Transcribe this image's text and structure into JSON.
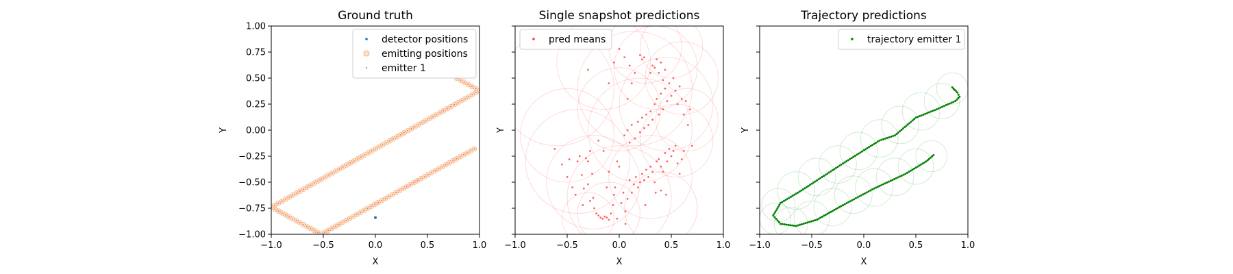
{
  "chart_data": [
    {
      "type": "scatter",
      "title": "Ground truth",
      "xlabel": "X",
      "ylabel": "Y",
      "xlim": [
        -1.0,
        1.0
      ],
      "ylim": [
        -1.0,
        1.0
      ],
      "xticks": [
        "−1.0",
        "−0.5",
        "0.0",
        "0.5",
        "1.0"
      ],
      "yticks": [
        "−1.00",
        "−0.75",
        "−0.50",
        "−0.25",
        "0.00",
        "0.25",
        "0.50",
        "0.75",
        "1.00"
      ],
      "legend_position": "top-right",
      "legend": [
        "detector positions",
        "emitting positions",
        "emitter 1"
      ],
      "series": [
        {
          "name": "detector positions",
          "color": "#1f77b4",
          "points": [
            [
              0.0,
              -0.84
            ]
          ]
        },
        {
          "name": "emitting positions",
          "color": "#ff7f0e",
          "path": [
            [
              0.78,
              0.5
            ],
            [
              1.0,
              0.38
            ],
            [
              -1.0,
              -0.74
            ],
            [
              -0.52,
              -1.0
            ],
            [
              0.95,
              -0.18
            ]
          ]
        },
        {
          "name": "emitter 1",
          "color": "#d62728",
          "path": [
            [
              0.78,
              0.5
            ],
            [
              1.0,
              0.38
            ],
            [
              -1.0,
              -0.74
            ],
            [
              -0.52,
              -1.0
            ],
            [
              0.95,
              -0.18
            ]
          ]
        }
      ]
    },
    {
      "type": "scatter",
      "title": "Single snapshot predictions",
      "xlabel": "X",
      "ylabel": "Y",
      "xlim": [
        -1.0,
        1.0
      ],
      "ylim": [
        -1.0,
        1.0
      ],
      "xticks": [
        "−1.0",
        "−0.5",
        "0.0",
        "0.5",
        "1.0"
      ],
      "legend_position": "top-left",
      "legend": [
        "pred means"
      ],
      "series": [
        {
          "name": "pred means",
          "color": "#ff3b3b",
          "points": [
            [
              -0.62,
              -0.18
            ],
            [
              -0.55,
              -0.33
            ],
            [
              -0.5,
              -0.45
            ],
            [
              -0.48,
              -0.28
            ],
            [
              -0.45,
              -0.55
            ],
            [
              -0.42,
              -0.62
            ],
            [
              -0.4,
              -0.3
            ],
            [
              -0.38,
              -0.25
            ],
            [
              -0.36,
              -0.43
            ],
            [
              -0.34,
              -0.56
            ],
            [
              -0.32,
              -0.27
            ],
            [
              -0.3,
              -0.3
            ],
            [
              -0.28,
              -0.2
            ],
            [
              -0.26,
              -0.42
            ],
            [
              -0.25,
              -0.65
            ],
            [
              -0.24,
              -0.75
            ],
            [
              -0.22,
              -0.8
            ],
            [
              -0.2,
              -0.82
            ],
            [
              -0.18,
              -0.84
            ],
            [
              -0.16,
              -0.85
            ],
            [
              -0.14,
              -0.83
            ],
            [
              -0.12,
              -0.84
            ],
            [
              -0.1,
              -0.86
            ],
            [
              -0.08,
              -0.8
            ],
            [
              -0.06,
              -0.72
            ],
            [
              -0.05,
              -0.62
            ],
            [
              -0.04,
              -0.55
            ],
            [
              -0.02,
              -0.3
            ],
            [
              0.0,
              -0.35
            ],
            [
              0.02,
              -0.7
            ],
            [
              0.04,
              -0.6
            ],
            [
              0.06,
              -0.78
            ],
            [
              0.08,
              -0.66
            ],
            [
              0.1,
              -0.48
            ],
            [
              0.12,
              -0.6
            ],
            [
              0.14,
              -0.52
            ],
            [
              0.16,
              -0.45
            ],
            [
              0.18,
              -0.55
            ],
            [
              0.2,
              -0.5
            ],
            [
              0.22,
              -0.42
            ],
            [
              0.24,
              -0.48
            ],
            [
              0.26,
              -0.38
            ],
            [
              0.28,
              -0.45
            ],
            [
              0.3,
              -0.35
            ],
            [
              0.32,
              -0.4
            ],
            [
              0.34,
              -0.5
            ],
            [
              0.36,
              -0.3
            ],
            [
              0.38,
              -0.28
            ],
            [
              0.4,
              -0.35
            ],
            [
              0.42,
              -0.4
            ],
            [
              0.44,
              -0.22
            ],
            [
              0.46,
              -0.3
            ],
            [
              0.48,
              -0.18
            ],
            [
              0.5,
              -0.25
            ],
            [
              0.52,
              -0.2
            ],
            [
              0.54,
              -0.15
            ],
            [
              0.56,
              -0.32
            ],
            [
              0.58,
              -0.42
            ],
            [
              0.6,
              -0.28
            ],
            [
              0.62,
              -0.2
            ],
            [
              0.05,
              -0.05
            ],
            [
              0.08,
              0.0
            ],
            [
              0.1,
              -0.12
            ],
            [
              0.12,
              0.05
            ],
            [
              0.15,
              -0.08
            ],
            [
              0.18,
              0.08
            ],
            [
              0.2,
              -0.02
            ],
            [
              0.22,
              0.12
            ],
            [
              0.24,
              0.02
            ],
            [
              0.26,
              0.15
            ],
            [
              0.28,
              0.05
            ],
            [
              0.3,
              0.18
            ],
            [
              0.32,
              0.1
            ],
            [
              0.34,
              0.25
            ],
            [
              0.36,
              0.3
            ],
            [
              0.38,
              0.15
            ],
            [
              0.4,
              0.35
            ],
            [
              0.42,
              0.2
            ],
            [
              0.44,
              0.4
            ],
            [
              0.46,
              0.28
            ],
            [
              0.48,
              0.45
            ],
            [
              0.5,
              0.33
            ],
            [
              0.52,
              0.5
            ],
            [
              0.54,
              0.38
            ],
            [
              0.56,
              0.25
            ],
            [
              0.58,
              0.42
            ],
            [
              0.6,
              0.3
            ],
            [
              0.62,
              0.15
            ],
            [
              0.64,
              0.28
            ],
            [
              0.66,
              0.05
            ],
            [
              0.68,
              0.2
            ],
            [
              0.7,
              -0.15
            ],
            [
              0.3,
              0.55
            ],
            [
              0.32,
              0.62
            ],
            [
              0.34,
              0.6
            ],
            [
              0.36,
              0.68
            ],
            [
              0.38,
              0.55
            ],
            [
              0.4,
              0.65
            ],
            [
              0.42,
              0.48
            ],
            [
              0.44,
              0.58
            ],
            [
              0.2,
              0.72
            ],
            [
              0.22,
              0.68
            ],
            [
              0.24,
              0.7
            ],
            [
              0.15,
              0.55
            ],
            [
              0.12,
              0.45
            ],
            [
              0.1,
              0.62
            ],
            [
              0.05,
              0.7
            ],
            [
              0.0,
              0.78
            ],
            [
              -0.05,
              0.65
            ],
            [
              -0.3,
              0.58
            ],
            [
              -0.1,
              0.45
            ],
            [
              0.08,
              0.3
            ],
            [
              -0.2,
              -0.1
            ],
            [
              -0.15,
              -0.2
            ],
            [
              -0.1,
              -0.4
            ],
            [
              -0.12,
              -0.55
            ],
            [
              -0.3,
              -0.52
            ],
            [
              -0.28,
              -0.68
            ],
            [
              -0.35,
              -0.72
            ],
            [
              -0.02,
              -0.85
            ],
            [
              0.06,
              -0.9
            ],
            [
              0.25,
              -0.72
            ],
            [
              0.4,
              -0.58
            ],
            [
              0.45,
              -0.62
            ],
            [
              0.35,
              -0.6
            ]
          ]
        }
      ],
      "uncertainty_circles": [
        [
          -0.25,
          -0.5,
          0.45
        ],
        [
          0.0,
          -0.65,
          0.5
        ],
        [
          0.3,
          -0.45,
          0.4
        ],
        [
          -0.4,
          -0.3,
          0.5
        ],
        [
          0.45,
          0.25,
          0.45
        ],
        [
          0.35,
          0.6,
          0.4
        ],
        [
          0.15,
          0.4,
          0.55
        ],
        [
          -0.5,
          -0.05,
          0.45
        ],
        [
          0.55,
          -0.1,
          0.35
        ],
        [
          0.2,
          0.0,
          0.5
        ],
        [
          -0.1,
          -0.8,
          0.3
        ],
        [
          0.6,
          0.5,
          0.35
        ],
        [
          0.25,
          0.8,
          0.35
        ],
        [
          -0.6,
          0.4,
          0.55
        ],
        [
          0.0,
          0.2,
          0.4
        ],
        [
          0.4,
          -0.75,
          0.35
        ],
        [
          -0.3,
          -0.85,
          0.25
        ],
        [
          0.65,
          0.1,
          0.3
        ],
        [
          -0.15,
          0.65,
          0.45
        ],
        [
          0.5,
          0.8,
          0.3
        ]
      ]
    },
    {
      "type": "scatter",
      "title": "Trajectory predictions",
      "xlabel": "X",
      "ylabel": "Y",
      "xlim": [
        -1.0,
        1.0
      ],
      "ylim": [
        -1.0,
        1.0
      ],
      "xticks": [
        "−1.0",
        "−0.5",
        "0.0",
        "0.5",
        "1.0"
      ],
      "legend_position": "top-right",
      "legend": [
        "trajectory emitter 1"
      ],
      "series": [
        {
          "name": "trajectory emitter 1",
          "color": "#008000",
          "path": [
            [
              0.85,
              0.41
            ],
            [
              0.9,
              0.36
            ],
            [
              0.92,
              0.32
            ],
            [
              0.88,
              0.28
            ],
            [
              0.7,
              0.2
            ],
            [
              0.5,
              0.12
            ],
            [
              0.3,
              -0.05
            ],
            [
              0.15,
              -0.1
            ],
            [
              -0.2,
              -0.32
            ],
            [
              -0.6,
              -0.58
            ],
            [
              -0.8,
              -0.7
            ],
            [
              -0.87,
              -0.82
            ],
            [
              -0.8,
              -0.9
            ],
            [
              -0.65,
              -0.92
            ],
            [
              -0.45,
              -0.86
            ],
            [
              -0.2,
              -0.72
            ],
            [
              0.1,
              -0.56
            ],
            [
              0.4,
              -0.42
            ],
            [
              0.6,
              -0.3
            ],
            [
              0.67,
              -0.24
            ]
          ]
        }
      ],
      "uncertainty_circles": [
        [
          0.85,
          0.4,
          0.15
        ],
        [
          0.75,
          0.28,
          0.17
        ],
        [
          0.55,
          0.18,
          0.18
        ],
        [
          0.35,
          0.05,
          0.18
        ],
        [
          0.15,
          -0.08,
          0.18
        ],
        [
          -0.05,
          -0.2,
          0.18
        ],
        [
          -0.25,
          -0.33,
          0.18
        ],
        [
          -0.45,
          -0.45,
          0.18
        ],
        [
          -0.65,
          -0.58,
          0.18
        ],
        [
          -0.82,
          -0.72,
          0.16
        ],
        [
          -0.85,
          -0.85,
          0.15
        ],
        [
          -0.7,
          -0.9,
          0.16
        ],
        [
          -0.5,
          -0.85,
          0.17
        ],
        [
          -0.3,
          -0.74,
          0.18
        ],
        [
          -0.1,
          -0.62,
          0.18
        ],
        [
          0.1,
          -0.55,
          0.18
        ],
        [
          0.3,
          -0.45,
          0.18
        ],
        [
          0.5,
          -0.35,
          0.17
        ],
        [
          0.65,
          -0.25,
          0.15
        ]
      ]
    }
  ]
}
